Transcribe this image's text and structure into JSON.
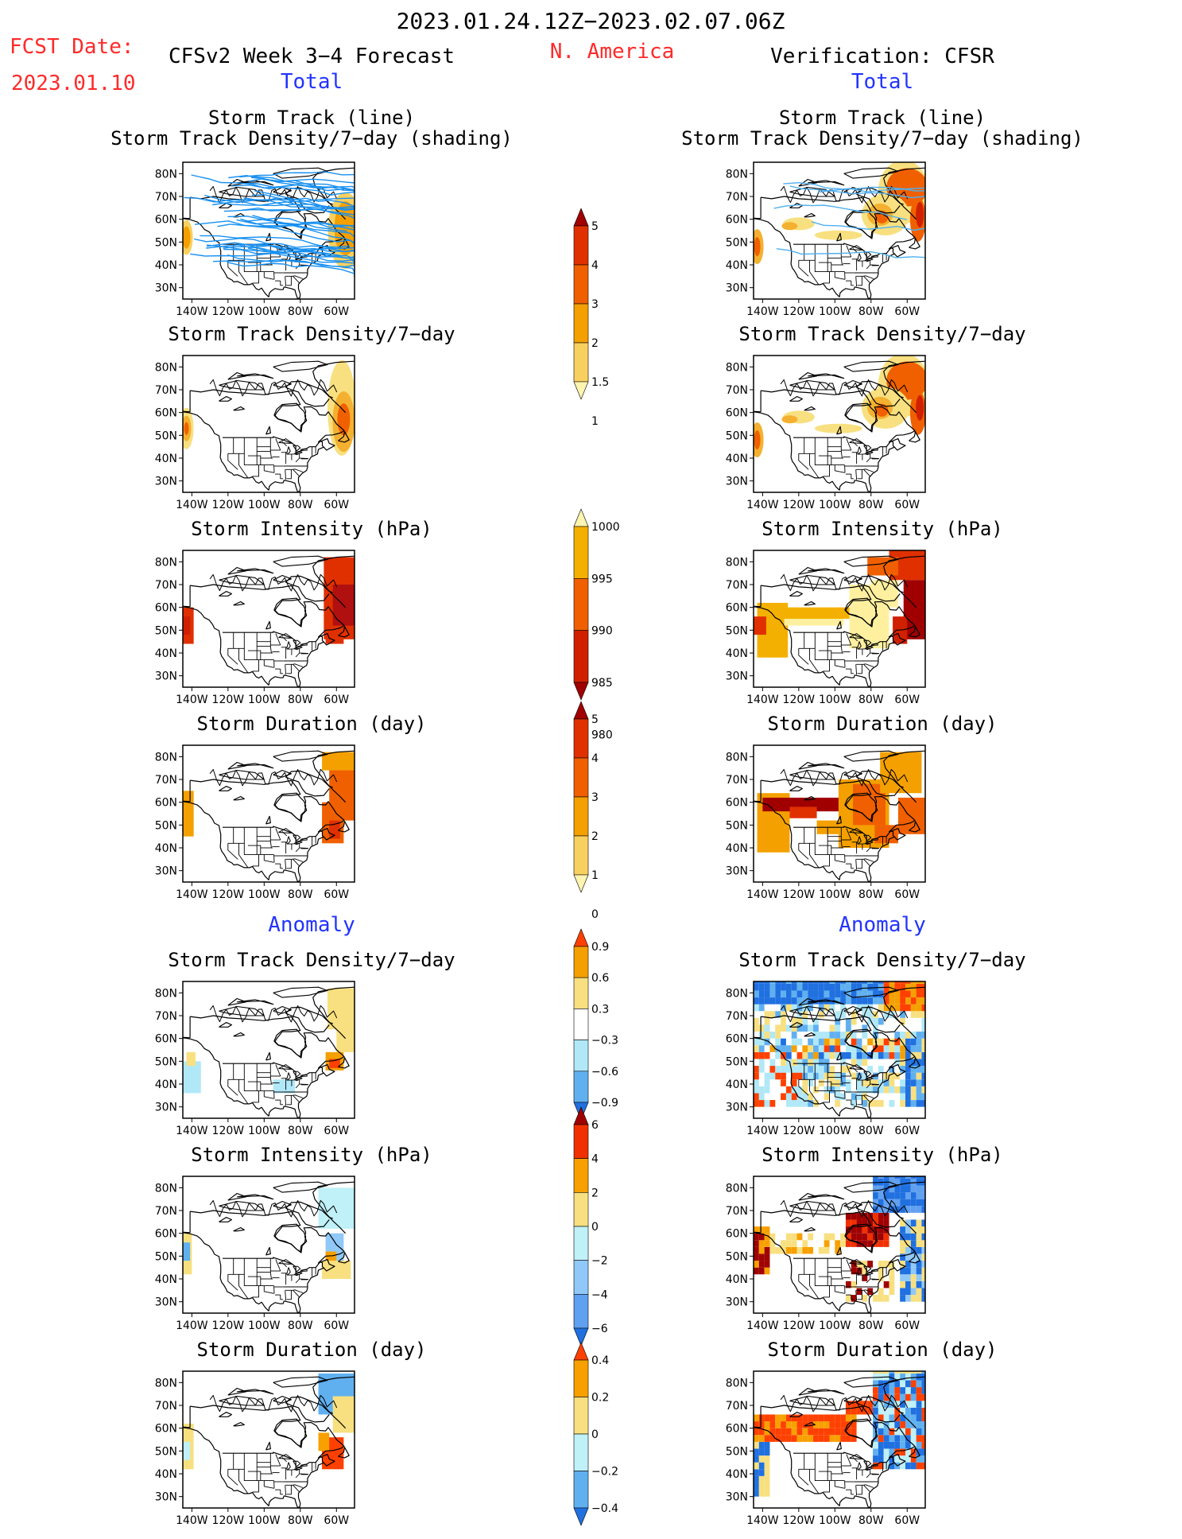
{
  "header": {
    "date_range": "2023.01.24.12Z−2023.02.07.06Z",
    "fcst_label": "FCST Date:",
    "fcst_date": "2023.01.10",
    "forecast_title": "CFSv2 Week 3−4 Forecast",
    "region": "N. America",
    "verification_title": "Verification: CFSR"
  },
  "sections": {
    "total": "Total",
    "anomaly": "Anomaly"
  },
  "panel_titles": {
    "track_line": "Storm Track (line)",
    "track_shading": "Storm Track Density/7−day (shading)",
    "density": "Storm Track Density/7−day",
    "intensity": "Storm Intensity (hPa)",
    "duration": "Storm Duration (day)"
  },
  "axes": {
    "lat_labels": [
      "80N",
      "70N",
      "60N",
      "50N",
      "40N",
      "30N"
    ],
    "lon_labels": [
      "140W",
      "120W",
      "100W",
      "80W",
      "60W"
    ]
  },
  "colorbars": [
    {
      "labels": [
        "5",
        "4",
        "3",
        "2",
        "1.5",
        "1"
      ],
      "colors": [
        "#a00000",
        "#e03000",
        "#f06000",
        "#f4a000",
        "#f8d060",
        "#fff4b0"
      ]
    },
    {
      "labels": [
        "1000",
        "995",
        "990",
        "985",
        "980"
      ],
      "colors": [
        "#fff4b0",
        "#f4b000",
        "#f06000",
        "#d02000",
        "#a00000"
      ]
    },
    {
      "labels": [
        "5",
        "4",
        "3",
        "2",
        "1",
        "0"
      ],
      "colors": [
        "#a00000",
        "#e03000",
        "#f06000",
        "#f4a000",
        "#f8d060",
        "#fff4b0"
      ]
    },
    {
      "labels": [
        "0.9",
        "0.6",
        "0.3",
        "−0.3",
        "−0.6",
        "−0.9"
      ],
      "colors": [
        "#ff4000",
        "#f4a000",
        "#f8e080",
        "#ffffff",
        "#b0e8f8",
        "#60b0f0",
        "#2070e0"
      ]
    },
    {
      "labels": [
        "6",
        "4",
        "2",
        "0",
        "−2",
        "−4",
        "−6"
      ],
      "colors": [
        "#a00000",
        "#f03000",
        "#f8a000",
        "#f8e080",
        "#c0f0f8",
        "#90c8f8",
        "#60a0f0",
        "#2070e0"
      ]
    },
    {
      "labels": [
        "0.4",
        "0.2",
        "0",
        "−0.2",
        "−0.4"
      ],
      "colors": [
        "#ff4000",
        "#f8a000",
        "#f8e080",
        "#c0f0f8",
        "#60b0f0",
        "#2070e0"
      ]
    }
  ]
}
